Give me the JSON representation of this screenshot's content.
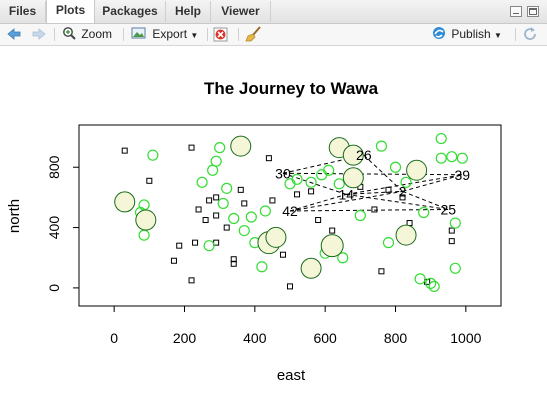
{
  "tabs": [
    {
      "label": "Files",
      "active": false
    },
    {
      "label": "Plots",
      "active": true
    },
    {
      "label": "Packages",
      "active": false
    },
    {
      "label": "Help",
      "active": false
    },
    {
      "label": "Viewer",
      "active": false
    }
  ],
  "toolbar": {
    "zoom_label": "Zoom",
    "export_label": "Export",
    "publish_label": "Publish"
  },
  "chart_data": {
    "type": "scatter",
    "title": "The Journey to Wawa",
    "xlabel": "east",
    "ylabel": "north",
    "xlim": [
      -100,
      1100
    ],
    "ylim": [
      -120,
      1080
    ],
    "xticks": [
      "0",
      "200",
      "400",
      "600",
      "800",
      "1000"
    ],
    "yticks": [
      "0",
      "400",
      "800"
    ],
    "colors": {
      "point_green": "#33dd33",
      "bubble_fill": "#f5f5d8",
      "bubble_stroke": "#1a6b1a",
      "square": "#000000"
    },
    "big_circles": [
      {
        "x": 30,
        "y": 570,
        "r": 10
      },
      {
        "x": 90,
        "y": 450,
        "r": 10
      },
      {
        "x": 360,
        "y": 940,
        "r": 10
      },
      {
        "x": 440,
        "y": 300,
        "r": 11
      },
      {
        "x": 460,
        "y": 335,
        "r": 10
      },
      {
        "x": 560,
        "y": 130,
        "r": 10
      },
      {
        "x": 620,
        "y": 280,
        "r": 11
      },
      {
        "x": 640,
        "y": 930,
        "r": 10
      },
      {
        "x": 680,
        "y": 880,
        "r": 10
      },
      {
        "x": 680,
        "y": 730,
        "r": 10
      },
      {
        "x": 830,
        "y": 350,
        "r": 10
      },
      {
        "x": 860,
        "y": 780,
        "r": 10
      }
    ],
    "green_circles": [
      {
        "x": 75,
        "y": 500
      },
      {
        "x": 85,
        "y": 550
      },
      {
        "x": 110,
        "y": 880
      },
      {
        "x": 85,
        "y": 350
      },
      {
        "x": 250,
        "y": 700
      },
      {
        "x": 280,
        "y": 780
      },
      {
        "x": 290,
        "y": 840
      },
      {
        "x": 300,
        "y": 930
      },
      {
        "x": 320,
        "y": 660
      },
      {
        "x": 310,
        "y": 560
      },
      {
        "x": 270,
        "y": 280
      },
      {
        "x": 340,
        "y": 460
      },
      {
        "x": 370,
        "y": 380
      },
      {
        "x": 390,
        "y": 470
      },
      {
        "x": 400,
        "y": 300
      },
      {
        "x": 420,
        "y": 140
      },
      {
        "x": 430,
        "y": 510
      },
      {
        "x": 500,
        "y": 690
      },
      {
        "x": 520,
        "y": 720
      },
      {
        "x": 560,
        "y": 700
      },
      {
        "x": 590,
        "y": 750
      },
      {
        "x": 610,
        "y": 780
      },
      {
        "x": 640,
        "y": 690
      },
      {
        "x": 600,
        "y": 230
      },
      {
        "x": 650,
        "y": 200
      },
      {
        "x": 700,
        "y": 480
      },
      {
        "x": 760,
        "y": 940
      },
      {
        "x": 780,
        "y": 300
      },
      {
        "x": 800,
        "y": 800
      },
      {
        "x": 830,
        "y": 700
      },
      {
        "x": 870,
        "y": 60
      },
      {
        "x": 880,
        "y": 500
      },
      {
        "x": 900,
        "y": 30
      },
      {
        "x": 910,
        "y": 10
      },
      {
        "x": 930,
        "y": 990
      },
      {
        "x": 930,
        "y": 860
      },
      {
        "x": 960,
        "y": 870
      },
      {
        "x": 970,
        "y": 430
      },
      {
        "x": 970,
        "y": 130
      },
      {
        "x": 990,
        "y": 860
      }
    ],
    "squares": [
      {
        "x": 30,
        "y": 910
      },
      {
        "x": 100,
        "y": 710
      },
      {
        "x": 170,
        "y": 180
      },
      {
        "x": 185,
        "y": 280
      },
      {
        "x": 220,
        "y": 930
      },
      {
        "x": 220,
        "y": 50
      },
      {
        "x": 230,
        "y": 300
      },
      {
        "x": 240,
        "y": 520
      },
      {
        "x": 260,
        "y": 450
      },
      {
        "x": 270,
        "y": 580
      },
      {
        "x": 290,
        "y": 600
      },
      {
        "x": 290,
        "y": 480
      },
      {
        "x": 290,
        "y": 300
      },
      {
        "x": 320,
        "y": 400
      },
      {
        "x": 340,
        "y": 190
      },
      {
        "x": 340,
        "y": 160
      },
      {
        "x": 360,
        "y": 650
      },
      {
        "x": 370,
        "y": 560
      },
      {
        "x": 440,
        "y": 860
      },
      {
        "x": 450,
        "y": 580
      },
      {
        "x": 480,
        "y": 220
      },
      {
        "x": 500,
        "y": 10
      },
      {
        "x": 520,
        "y": 620
      },
      {
        "x": 560,
        "y": 640
      },
      {
        "x": 580,
        "y": 450
      },
      {
        "x": 620,
        "y": 380
      },
      {
        "x": 700,
        "y": 670
      },
      {
        "x": 740,
        "y": 520
      },
      {
        "x": 760,
        "y": 110
      },
      {
        "x": 780,
        "y": 650
      },
      {
        "x": 820,
        "y": 600
      },
      {
        "x": 840,
        "y": 430
      },
      {
        "x": 890,
        "y": 40
      },
      {
        "x": 960,
        "y": 310
      },
      {
        "x": 960,
        "y": 380
      }
    ],
    "route_labels": [
      {
        "label": "30",
        "x": 480,
        "y": 760
      },
      {
        "label": "26",
        "x": 710,
        "y": 880
      },
      {
        "label": "14",
        "x": 660,
        "y": 620
      },
      {
        "label": "2",
        "x": 820,
        "y": 640
      },
      {
        "label": "39",
        "x": 990,
        "y": 750
      },
      {
        "label": "42",
        "x": 500,
        "y": 510
      },
      {
        "label": "25",
        "x": 950,
        "y": 520
      }
    ],
    "route_segments": [
      [
        [
          480,
          760
        ],
        [
          710,
          880
        ]
      ],
      [
        [
          480,
          760
        ],
        [
          990,
          750
        ]
      ],
      [
        [
          480,
          760
        ],
        [
          660,
          620
        ]
      ],
      [
        [
          660,
          620
        ],
        [
          820,
          640
        ]
      ],
      [
        [
          820,
          640
        ],
        [
          990,
          750
        ]
      ],
      [
        [
          660,
          620
        ],
        [
          990,
          750
        ]
      ],
      [
        [
          500,
          510
        ],
        [
          660,
          620
        ]
      ],
      [
        [
          500,
          510
        ],
        [
          950,
          520
        ]
      ],
      [
        [
          500,
          510
        ],
        [
          820,
          640
        ]
      ],
      [
        [
          820,
          640
        ],
        [
          950,
          520
        ]
      ],
      [
        [
          660,
          620
        ],
        [
          950,
          520
        ]
      ],
      [
        [
          710,
          880
        ],
        [
          820,
          640
        ]
      ]
    ]
  }
}
